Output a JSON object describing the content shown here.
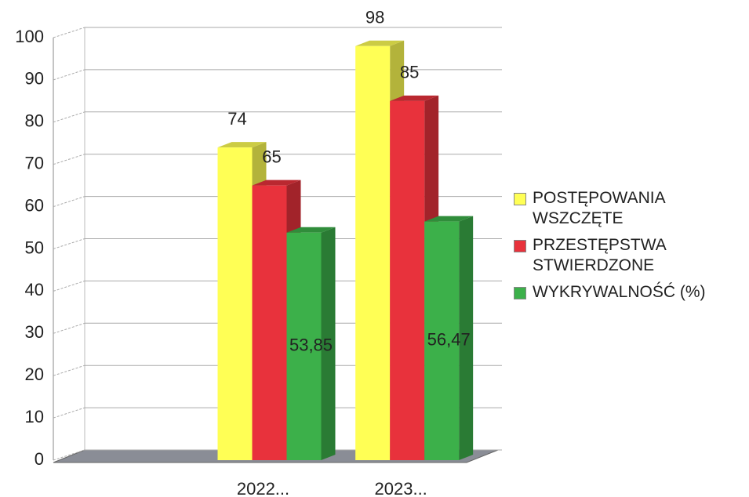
{
  "chart_data": {
    "type": "bar3d",
    "categories": [
      null,
      "2022...",
      "2023..."
    ],
    "series": [
      {
        "name": "POSTĘPOWANIA WSZCZĘTE",
        "color": "#ffff55",
        "values": [
          null,
          74,
          98
        ]
      },
      {
        "name": "PRZESTĘPSTWA STWIERDZONE",
        "color": "#e8323c",
        "values": [
          null,
          65,
          85
        ]
      },
      {
        "name": "WYKRYWALNOŚĆ (%)",
        "color": "#3cb04a",
        "values": [
          null,
          53.85,
          56.47
        ],
        "value_labels": [
          null,
          "53,85",
          "56,47"
        ]
      }
    ],
    "ylim": [
      0,
      100
    ],
    "yticks": [
      0,
      10,
      20,
      30,
      40,
      50,
      60,
      70,
      80,
      90,
      100
    ],
    "grid": true,
    "legend": "right"
  }
}
